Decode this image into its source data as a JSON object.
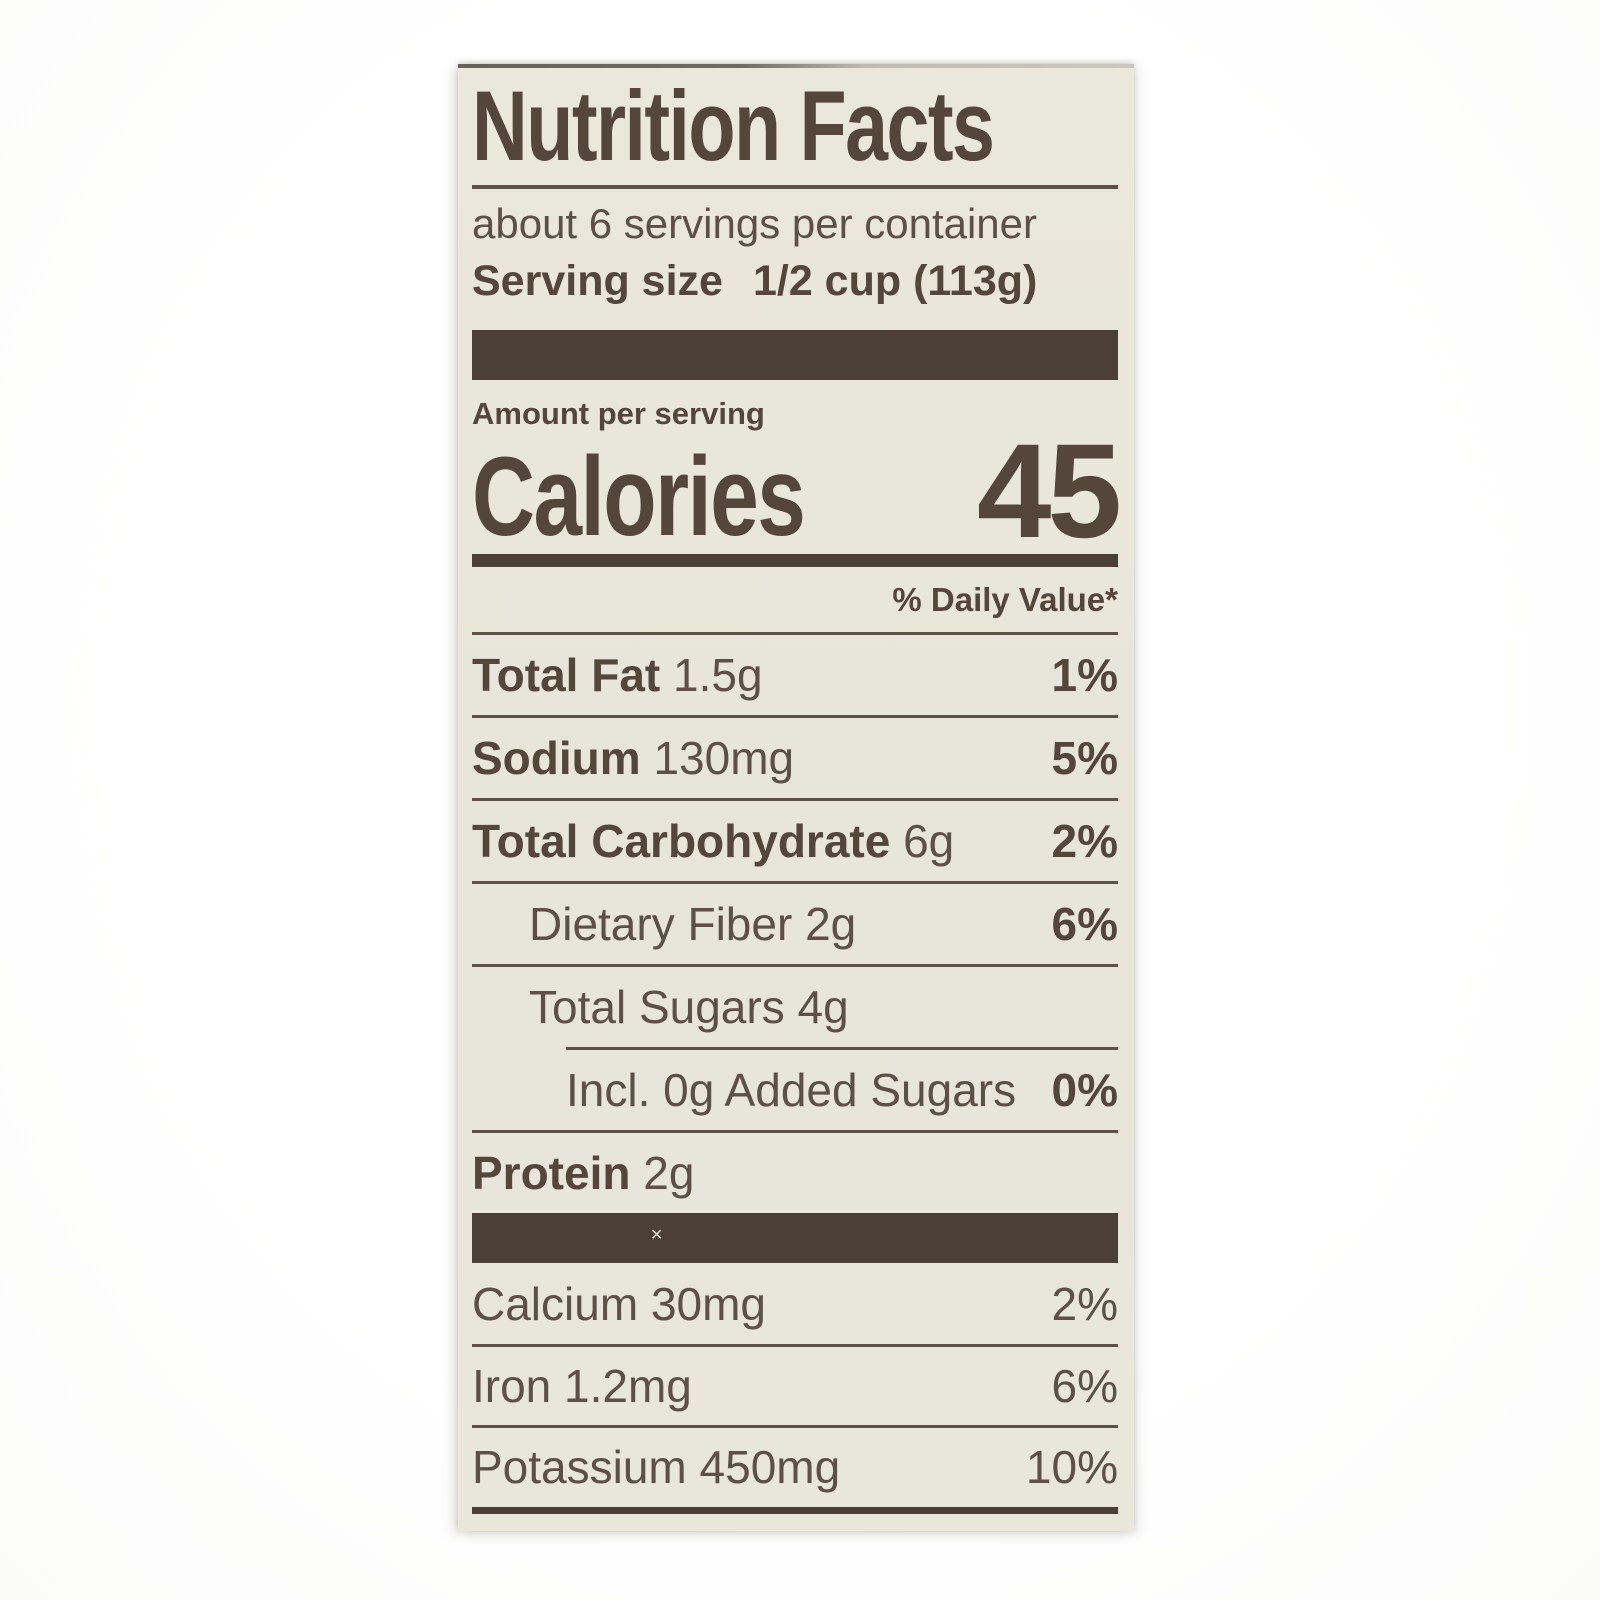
{
  "label": {
    "title": "Nutrition Facts",
    "servings_per_container": "about 6 servings per container",
    "serving_size": {
      "label": "Serving size",
      "value": "1/2 cup (113g)"
    },
    "amount_per_serving": "Amount per serving",
    "calories": {
      "label": "Calories",
      "value": "45"
    },
    "daily_value_header": "% Daily Value*",
    "rows": {
      "total_fat": {
        "name": "Total Fat",
        "amount": "1.5g",
        "dv": "1%"
      },
      "sodium": {
        "name": "Sodium",
        "amount": "130mg",
        "dv": "5%"
      },
      "total_carbohydrate": {
        "name": "Total Carbohydrate",
        "amount": "6g",
        "dv": "2%"
      },
      "dietary_fiber": {
        "name": "Dietary Fiber",
        "amount": "2g",
        "dv": "6%"
      },
      "total_sugars": {
        "name": "Total Sugars",
        "amount": "4g",
        "dv": ""
      },
      "added_sugars": {
        "name": "Incl. 0g Added Sugars",
        "dv": "0%"
      },
      "protein": {
        "name": "Protein",
        "amount": "2g",
        "dv": ""
      }
    },
    "minerals": {
      "calcium": {
        "name": "Calcium",
        "amount": "30mg",
        "dv": "2%"
      },
      "iron": {
        "name": "Iron",
        "amount": "1.2mg",
        "dv": "6%"
      },
      "potassium": {
        "name": "Potassium",
        "amount": "450mg",
        "dv": "10%"
      }
    },
    "colors": {
      "label_background": "#e9e6da",
      "ink": "#55463c",
      "bars": "#4c4036",
      "page_background": "#ffffff"
    }
  }
}
